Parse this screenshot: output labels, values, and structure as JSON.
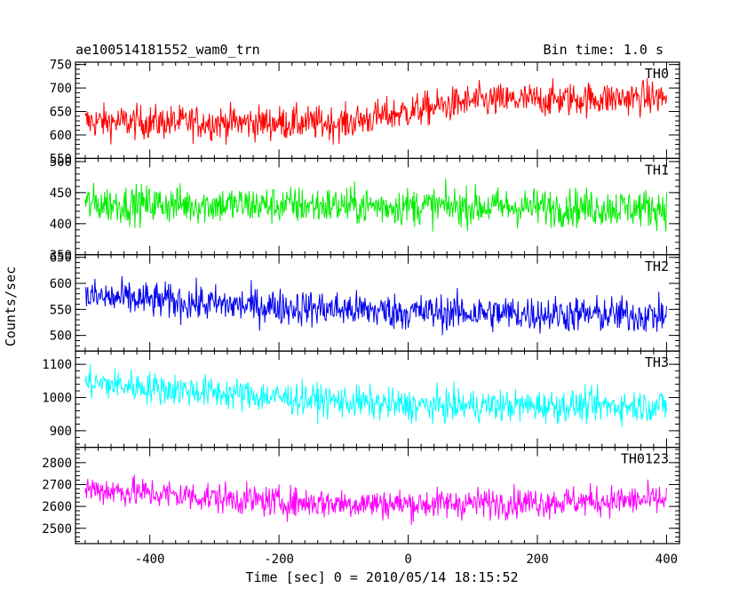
{
  "chart_data": {
    "type": "line",
    "title": "ae100514181552_wam0_trn",
    "bin_time_label": "Bin time: 1.0 s",
    "xlabel": "Time [sec] 0 = 2010/05/14 18:15:52",
    "ylabel": "Counts/sec",
    "xlim": [
      -515,
      420
    ],
    "xticks": [
      -400,
      -200,
      0,
      200,
      400
    ],
    "x_start": -500,
    "x_end": 400,
    "x_step": 1,
    "panels": [
      {
        "name": "TH0",
        "color": "#ff0000",
        "ylim": [
          550,
          755
        ],
        "yticks": [
          550,
          600,
          650,
          700,
          750
        ],
        "trend": [
          [
            -500,
            628
          ],
          [
            -100,
            625
          ],
          [
            0,
            650
          ],
          [
            100,
            672
          ],
          [
            400,
            680
          ]
        ],
        "noise": 26
      },
      {
        "name": "TH1",
        "color": "#00ee00",
        "ylim": [
          350,
          505
        ],
        "yticks": [
          350,
          400,
          450,
          500
        ],
        "trend": [
          [
            -500,
            432
          ],
          [
            400,
            425
          ]
        ],
        "noise": 22
      },
      {
        "name": "TH2",
        "color": "#0000ee",
        "ylim": [
          470,
          655
        ],
        "yticks": [
          500,
          550,
          600,
          650
        ],
        "trend": [
          [
            -500,
            575
          ],
          [
            -300,
            560
          ],
          [
            0,
            545
          ],
          [
            400,
            538
          ]
        ],
        "noise": 25
      },
      {
        "name": "TH3",
        "color": "#00ffff",
        "ylim": [
          850,
          1140
        ],
        "yticks": [
          900,
          1000,
          1100
        ],
        "trend": [
          [
            -500,
            1045
          ],
          [
            -200,
            1000
          ],
          [
            0,
            975
          ],
          [
            400,
            975
          ]
        ],
        "noise": 35
      },
      {
        "name": "TH0123",
        "color": "#ff00ff",
        "ylim": [
          2430,
          2870
        ],
        "yticks": [
          2500,
          2600,
          2700,
          2800
        ],
        "trend": [
          [
            -500,
            2680
          ],
          [
            -200,
            2620
          ],
          [
            0,
            2610
          ],
          [
            400,
            2630
          ]
        ],
        "noise": 50
      }
    ]
  }
}
